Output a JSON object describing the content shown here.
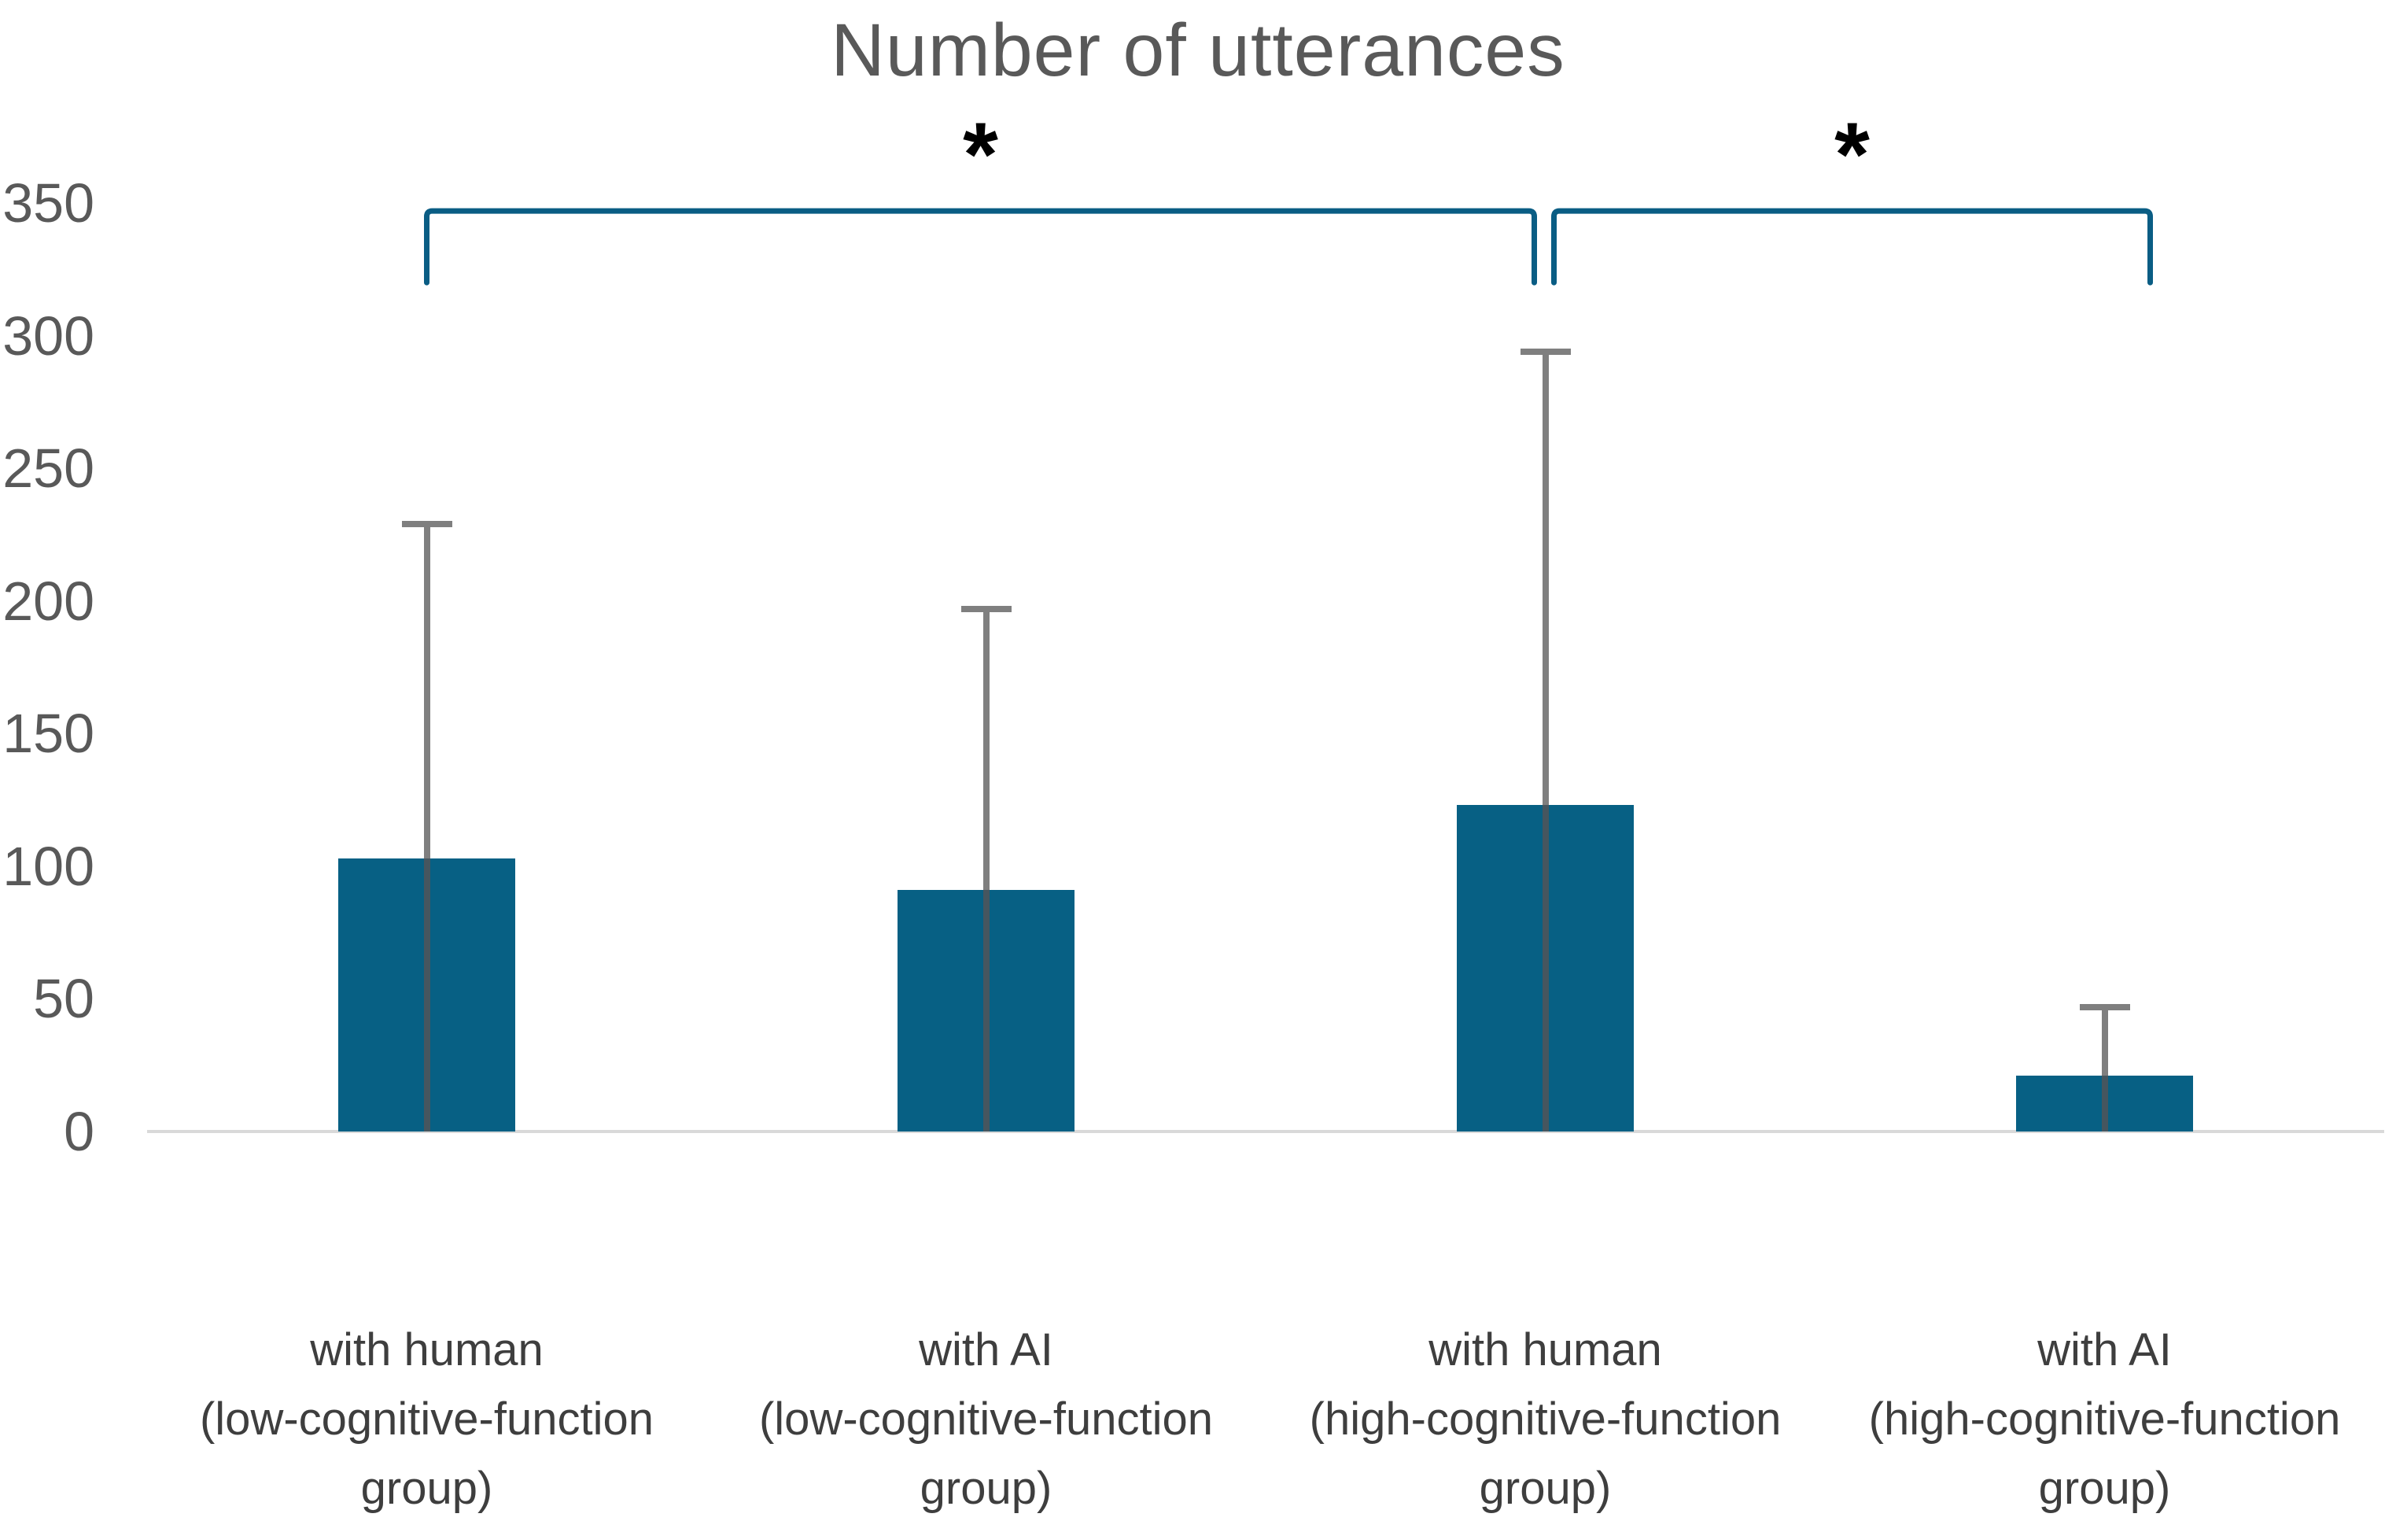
{
  "title": "Number of utterances",
  "colors": {
    "bar": "#076084",
    "bracket": "#0a5d84",
    "error_whisker": "#7f7f7f",
    "error_whisker_in_bar": "#46565f",
    "axis_line": "#d9d9d9",
    "title_text": "#595959",
    "tick_text": "#595959",
    "category_text": "#3e3e3e",
    "asterisk": "#000000"
  },
  "chart_data": {
    "type": "bar",
    "title": "Number of utterances",
    "categories": [
      [
        "with human",
        "(low-cognitive-function",
        "group)"
      ],
      [
        "with AI",
        "(low-cognitive-function",
        "group)"
      ],
      [
        "with human",
        "(high-cognitive-function",
        "group)"
      ],
      [
        "with AI",
        "(high-cognitive-function",
        "group)"
      ]
    ],
    "values": [
      103,
      91,
      123,
      21
    ],
    "error_upper_ends": [
      229,
      197,
      294,
      47
    ],
    "ylabel": "",
    "xlabel": "",
    "ylim": [
      0,
      350
    ],
    "yticks": [
      "0",
      "50",
      "100",
      "150",
      "200",
      "250",
      "300",
      "350"
    ],
    "grid": false,
    "legend": false,
    "significance_brackets": [
      {
        "from_bar": 0,
        "to_bar": 2,
        "label": "*",
        "top_value": 347,
        "tick_bottom_value": 320
      },
      {
        "from_bar": 2,
        "to_bar": 3,
        "label": "*",
        "top_value": 347,
        "tick_bottom_value": 320
      }
    ]
  }
}
